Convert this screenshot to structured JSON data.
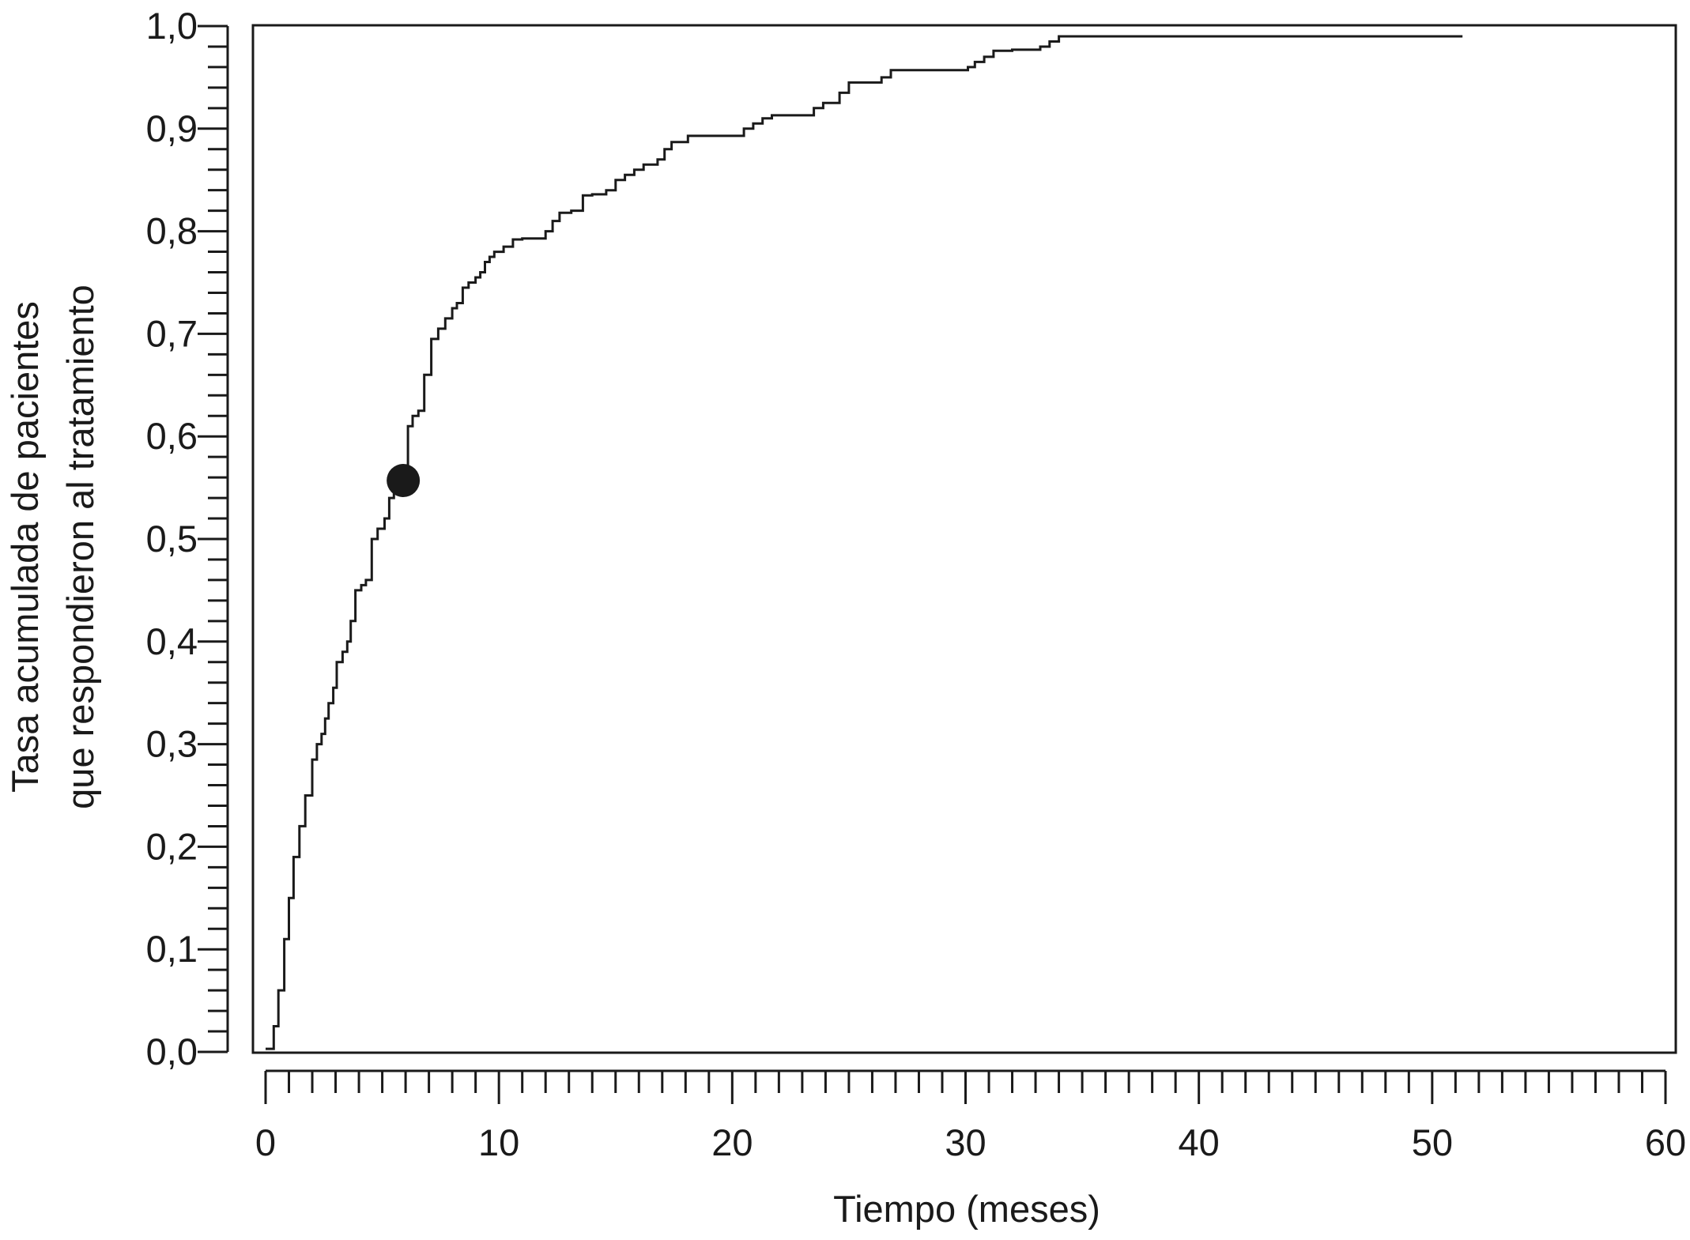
{
  "chart_data": {
    "type": "line",
    "line_style": "step",
    "title": "",
    "xlabel": "Tiempo (meses)",
    "ylabel_lines": [
      "Tasa acumulada de pacientes",
      "que respondieron al tratamiento"
    ],
    "xlim": [
      0,
      60
    ],
    "ylim": [
      0,
      1
    ],
    "grid": false,
    "legend": "none",
    "x_ticks": [
      0,
      10,
      20,
      30,
      40,
      50,
      60
    ],
    "x_tick_labels": [
      "0",
      "10",
      "20",
      "30",
      "40",
      "50",
      "60"
    ],
    "x_minor_step": 1,
    "y_ticks": [
      0,
      0.1,
      0.2,
      0.3,
      0.4,
      0.5,
      0.6,
      0.7,
      0.8,
      0.9,
      1.0
    ],
    "y_tick_labels": [
      "0,0",
      "0,1",
      "0,2",
      "0,3",
      "0,4",
      "0,5",
      "0,6",
      "0,7",
      "0,8",
      "0,9",
      "1,0"
    ],
    "y_minor_step": 0.02,
    "line_color": "#1a1a1a",
    "marker_color": "#1a1a1a",
    "series": [
      {
        "x": [
          0,
          0.35,
          0.55,
          0.8,
          1.0,
          1.2,
          1.45,
          1.7,
          2.0,
          2.2,
          2.4,
          2.55,
          2.7,
          2.9,
          3.05,
          3.3,
          3.5,
          3.65,
          3.85,
          4.1,
          4.3,
          4.55,
          4.8,
          5.1,
          5.3,
          5.5,
          5.7,
          5.9,
          6.1,
          6.3,
          6.55,
          6.8,
          7.1,
          7.4,
          7.7,
          8.0,
          8.2,
          8.45,
          8.7,
          9.0,
          9.2,
          9.4,
          9.6,
          9.8,
          10.2,
          10.6,
          11.0,
          12.0,
          12.3,
          12.6,
          13.1,
          13.6,
          14.0,
          14.6,
          15.0,
          15.4,
          15.8,
          16.2,
          16.8,
          17.1,
          17.4,
          18.1,
          20.5,
          20.9,
          21.3,
          21.7,
          23.5,
          23.9,
          24.6,
          25.0,
          26.4,
          26.8,
          30.1,
          30.4,
          30.8,
          31.2,
          32.0,
          33.2,
          33.6,
          34.0,
          51.3
        ],
        "y": [
          0.003,
          0.025,
          0.06,
          0.11,
          0.15,
          0.19,
          0.22,
          0.25,
          0.285,
          0.3,
          0.31,
          0.325,
          0.34,
          0.355,
          0.38,
          0.39,
          0.4,
          0.42,
          0.45,
          0.455,
          0.46,
          0.5,
          0.51,
          0.52,
          0.54,
          0.545,
          0.555,
          0.57,
          0.61,
          0.62,
          0.625,
          0.66,
          0.695,
          0.705,
          0.715,
          0.725,
          0.73,
          0.745,
          0.75,
          0.755,
          0.76,
          0.77,
          0.775,
          0.78,
          0.785,
          0.792,
          0.793,
          0.8,
          0.81,
          0.818,
          0.82,
          0.835,
          0.836,
          0.84,
          0.85,
          0.855,
          0.86,
          0.865,
          0.87,
          0.88,
          0.887,
          0.893,
          0.9,
          0.905,
          0.91,
          0.913,
          0.92,
          0.925,
          0.935,
          0.945,
          0.95,
          0.957,
          0.96,
          0.965,
          0.97,
          0.976,
          0.977,
          0.98,
          0.985,
          0.99,
          0.99
        ]
      }
    ],
    "marker": {
      "x": 5.9,
      "y": 0.557
    }
  }
}
